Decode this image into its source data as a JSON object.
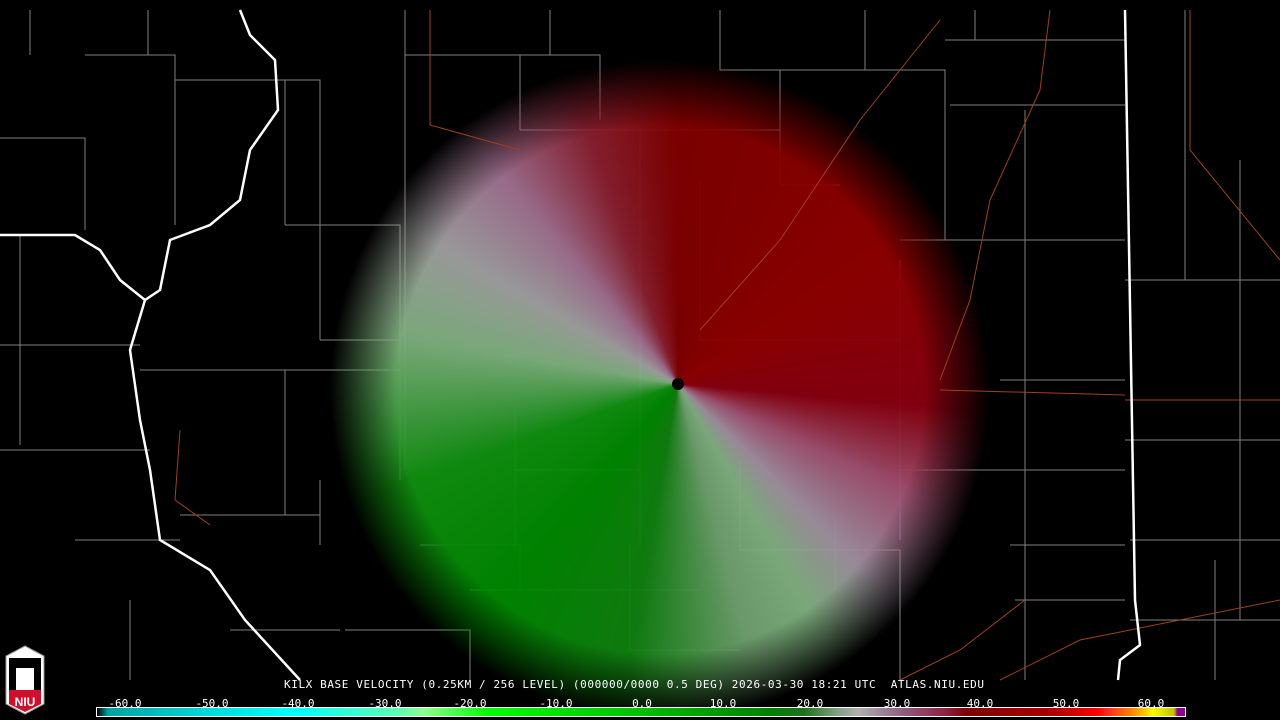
{
  "product_title": "KILX BASE VELOCITY (0.25KM / 256 LEVEL) (000000/0000 0.5 DEG) 2026-03-30 18:21 UTC  ATLAS.NIU.EDU",
  "logo": {
    "text": "NIU",
    "colors": {
      "red": "#d0102a",
      "white": "#ffffff"
    }
  },
  "legend": {
    "units_ticks": [
      "-60.0",
      "-50.0",
      "-40.0",
      "-30.0",
      "-20.0",
      "-10.0",
      "0.0",
      "10.0",
      "20.0",
      "30.0",
      "40.0",
      "50.0",
      "60.0"
    ],
    "range": [
      -64,
      64
    ]
  },
  "radar": {
    "site": "KILX",
    "colors": {
      "inbound": "#008000",
      "outbound": "#900000",
      "near_zero": "#a0a0a0"
    }
  },
  "map_colors": {
    "county": "#808080",
    "state": "#ffffff",
    "road": "#a04020"
  }
}
